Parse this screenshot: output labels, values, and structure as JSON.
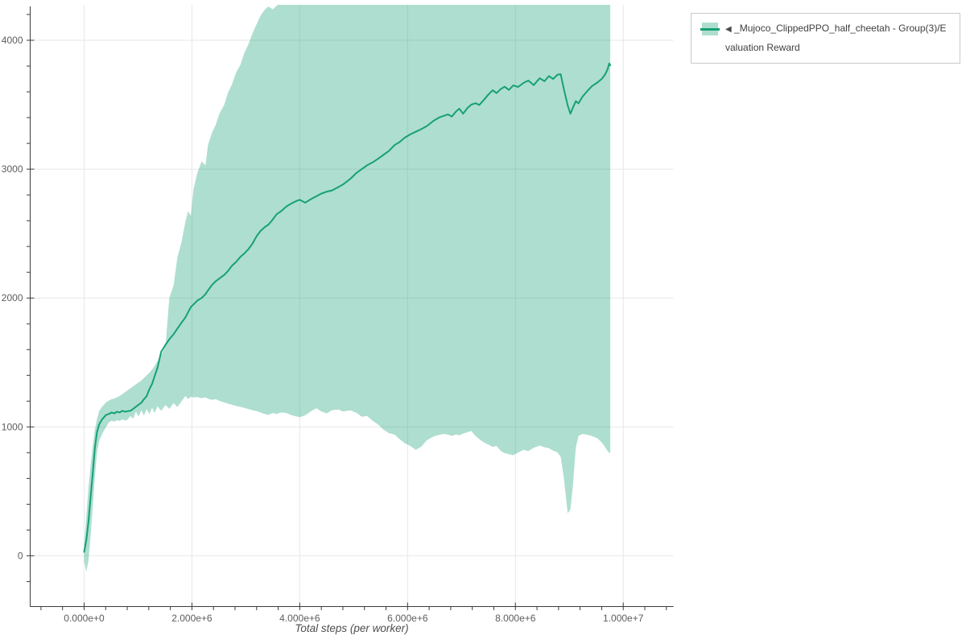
{
  "page": {
    "background": "#ffffff"
  },
  "legend": {
    "collapse_arrow": "◀",
    "label": "_Mujoco_ClippedPPO_half_cheetah - Group(3)/Evaluation Reward",
    "border_color": "#c9c9c9"
  },
  "colors": {
    "line": "#16a077",
    "band_fill": "rgba(22,160,119,0.35)",
    "grid": "#e7e7e7",
    "axis": "#3b3b3b",
    "tick_label": "#5c5c5c",
    "axis_title": "#4d4d4d"
  },
  "chart_data": {
    "type": "line",
    "title": "",
    "xlabel": "Total steps (per worker)",
    "ylabel": "",
    "grid": true,
    "legend_position": "top-right-outside",
    "x_axis": {
      "range": [
        -1000000,
        10930000
      ],
      "minor_tick_step": 400000,
      "major_ticks": [
        {
          "value": 0,
          "label": "0.000e+0"
        },
        {
          "value": 2000000,
          "label": "2.000e+6"
        },
        {
          "value": 4000000,
          "label": "4.000e+6"
        },
        {
          "value": 6000000,
          "label": "6.000e+6"
        },
        {
          "value": 8000000,
          "label": "8.000e+6"
        },
        {
          "value": 10000000,
          "label": "1.000e+7"
        }
      ]
    },
    "y_axis": {
      "range": [
        -394,
        4275
      ],
      "minor_tick_step": 200,
      "major_ticks": [
        {
          "value": 0,
          "label": "0"
        },
        {
          "value": 1000,
          "label": "1000"
        },
        {
          "value": 2000,
          "label": "2000"
        },
        {
          "value": 3000,
          "label": "3000"
        },
        {
          "value": 4000,
          "label": "4000"
        }
      ]
    },
    "series": [
      {
        "name": "_Mujoco_ClippedPPO_half_cheetah - Group(3)/Evaluation Reward",
        "note": "points are [steps, mean, lower_band, upper_band]; upper 4300 = clipped above plot top",
        "points": [
          [
            0,
            30,
            -40,
            90
          ],
          [
            40000,
            120,
            -125,
            300
          ],
          [
            80000,
            260,
            -40,
            520
          ],
          [
            120000,
            450,
            150,
            700
          ],
          [
            160000,
            640,
            380,
            850
          ],
          [
            200000,
            840,
            620,
            980
          ],
          [
            240000,
            960,
            800,
            1060
          ],
          [
            280000,
            1020,
            890,
            1125
          ],
          [
            340000,
            1062,
            950,
            1160
          ],
          [
            410000,
            1094,
            1000,
            1190
          ],
          [
            460000,
            1100,
            1035,
            1205
          ],
          [
            510000,
            1112,
            1048,
            1215
          ],
          [
            560000,
            1105,
            1040,
            1220
          ],
          [
            610000,
            1118,
            1052,
            1230
          ],
          [
            660000,
            1112,
            1046,
            1240
          ],
          [
            710000,
            1125,
            1058,
            1255
          ],
          [
            760000,
            1118,
            1050,
            1270
          ],
          [
            810000,
            1122,
            1056,
            1285
          ],
          [
            860000,
            1125,
            1085,
            1300
          ],
          [
            910000,
            1140,
            1062,
            1315
          ],
          [
            960000,
            1156,
            1120,
            1330
          ],
          [
            1010000,
            1172,
            1078,
            1345
          ],
          [
            1060000,
            1187,
            1130,
            1360
          ],
          [
            1110000,
            1215,
            1088,
            1380
          ],
          [
            1160000,
            1239,
            1140,
            1400
          ],
          [
            1210000,
            1292,
            1098,
            1420
          ],
          [
            1260000,
            1333,
            1150,
            1445
          ],
          [
            1310000,
            1396,
            1108,
            1475
          ],
          [
            1360000,
            1458,
            1160,
            1510
          ],
          [
            1430000,
            1583,
            1125,
            1560
          ],
          [
            1510000,
            1637,
            1170,
            1625
          ],
          [
            1580000,
            1680,
            1140,
            2000
          ],
          [
            1660000,
            1720,
            1185,
            2100
          ],
          [
            1730000,
            1762,
            1155,
            2312
          ],
          [
            1810000,
            1810,
            1200,
            2440
          ],
          [
            1880000,
            1850,
            1240,
            2594
          ],
          [
            1930000,
            1890,
            1215,
            2675
          ],
          [
            1980000,
            1930,
            1235,
            2637
          ],
          [
            2030000,
            1950,
            1228,
            2845
          ],
          [
            2100000,
            1980,
            1232,
            2970
          ],
          [
            2180000,
            2000,
            1222,
            3060
          ],
          [
            2250000,
            2030,
            1230,
            3030
          ],
          [
            2300000,
            2060,
            1218,
            3190
          ],
          [
            2370000,
            2100,
            1210,
            3280
          ],
          [
            2440000,
            2130,
            1215,
            3344
          ],
          [
            2520000,
            2155,
            1200,
            3440
          ],
          [
            2600000,
            2180,
            1190,
            3500
          ],
          [
            2670000,
            2210,
            1180,
            3594
          ],
          [
            2740000,
            2250,
            1172,
            3656
          ],
          [
            2820000,
            2280,
            1163,
            3750
          ],
          [
            2900000,
            2320,
            1155,
            3810
          ],
          [
            2970000,
            2345,
            1148,
            3900
          ],
          [
            3050000,
            2380,
            1138,
            3970
          ],
          [
            3120000,
            2420,
            1130,
            4050
          ],
          [
            3200000,
            2480,
            1122,
            4125
          ],
          [
            3270000,
            2520,
            1112,
            4190
          ],
          [
            3350000,
            2550,
            1100,
            4237
          ],
          [
            3420000,
            2570,
            1093,
            4262
          ],
          [
            3500000,
            2610,
            1108,
            4240
          ],
          [
            3570000,
            2650,
            1100,
            4268
          ],
          [
            3650000,
            2672,
            1112,
            4300
          ],
          [
            3750000,
            2710,
            1108,
            4300
          ],
          [
            3850000,
            2735,
            1090,
            4300
          ],
          [
            3950000,
            2755,
            1080,
            4300
          ],
          [
            4000000,
            2762,
            1075,
            4300
          ],
          [
            4100000,
            2740,
            1090,
            4300
          ],
          [
            4220000,
            2770,
            1125,
            4300
          ],
          [
            4310000,
            2790,
            1145,
            4300
          ],
          [
            4400000,
            2810,
            1120,
            4300
          ],
          [
            4500000,
            2825,
            1105,
            4300
          ],
          [
            4600000,
            2835,
            1130,
            4300
          ],
          [
            4720000,
            2862,
            1135,
            4300
          ],
          [
            4800000,
            2880,
            1120,
            4300
          ],
          [
            4940000,
            2925,
            1128,
            4300
          ],
          [
            5050000,
            2970,
            1110,
            4300
          ],
          [
            5150000,
            3000,
            1078,
            4300
          ],
          [
            5250000,
            3030,
            1085,
            4300
          ],
          [
            5350000,
            3052,
            1048,
            4300
          ],
          [
            5450000,
            3080,
            1020,
            4300
          ],
          [
            5550000,
            3110,
            980,
            4300
          ],
          [
            5650000,
            3140,
            952,
            4300
          ],
          [
            5760000,
            3187,
            940,
            4300
          ],
          [
            5850000,
            3210,
            905,
            4300
          ],
          [
            5950000,
            3245,
            872,
            4300
          ],
          [
            6050000,
            3270,
            852,
            4300
          ],
          [
            6150000,
            3290,
            822,
            4300
          ],
          [
            6250000,
            3310,
            845,
            4300
          ],
          [
            6360000,
            3335,
            898,
            4300
          ],
          [
            6480000,
            3375,
            925,
            4300
          ],
          [
            6580000,
            3400,
            938,
            4300
          ],
          [
            6680000,
            3415,
            945,
            4300
          ],
          [
            6750000,
            3425,
            940,
            4300
          ],
          [
            6820000,
            3408,
            930,
            4300
          ],
          [
            6900000,
            3448,
            942,
            4300
          ],
          [
            6960000,
            3469,
            935,
            4300
          ],
          [
            7030000,
            3430,
            948,
            4300
          ],
          [
            7110000,
            3475,
            958,
            4300
          ],
          [
            7180000,
            3500,
            968,
            4300
          ],
          [
            7260000,
            3512,
            930,
            4300
          ],
          [
            7330000,
            3498,
            905,
            4300
          ],
          [
            7420000,
            3540,
            878,
            4300
          ],
          [
            7500000,
            3580,
            862,
            4300
          ],
          [
            7580000,
            3612,
            845,
            4300
          ],
          [
            7650000,
            3590,
            852,
            4300
          ],
          [
            7730000,
            3622,
            812,
            4300
          ],
          [
            7800000,
            3640,
            798,
            4300
          ],
          [
            7880000,
            3615,
            788,
            4300
          ],
          [
            7960000,
            3650,
            780,
            4300
          ],
          [
            8050000,
            3638,
            800,
            4300
          ],
          [
            8150000,
            3669,
            822,
            4300
          ],
          [
            8240000,
            3688,
            812,
            4300
          ],
          [
            8340000,
            3652,
            838,
            4300
          ],
          [
            8450000,
            3706,
            855,
            4300
          ],
          [
            8540000,
            3682,
            842,
            4300
          ],
          [
            8620000,
            3722,
            835,
            4300
          ],
          [
            8700000,
            3700,
            815,
            4300
          ],
          [
            8780000,
            3732,
            802,
            4300
          ],
          [
            8840000,
            3737,
            768,
            4300
          ],
          [
            8900000,
            3620,
            600,
            4300
          ],
          [
            8970000,
            3495,
            330,
            4300
          ],
          [
            9020000,
            3430,
            360,
            4300
          ],
          [
            9070000,
            3480,
            560,
            4300
          ],
          [
            9120000,
            3528,
            840,
            4300
          ],
          [
            9170000,
            3510,
            930,
            4300
          ],
          [
            9240000,
            3560,
            945,
            4300
          ],
          [
            9320000,
            3600,
            940,
            4300
          ],
          [
            9420000,
            3645,
            928,
            4300
          ],
          [
            9520000,
            3672,
            912,
            4300
          ],
          [
            9600000,
            3700,
            880,
            4300
          ],
          [
            9660000,
            3732,
            845,
            4300
          ],
          [
            9710000,
            3775,
            812,
            4300
          ],
          [
            9740000,
            3820,
            800,
            4300
          ],
          [
            9760000,
            3806,
            795,
            4300
          ]
        ]
      }
    ]
  }
}
